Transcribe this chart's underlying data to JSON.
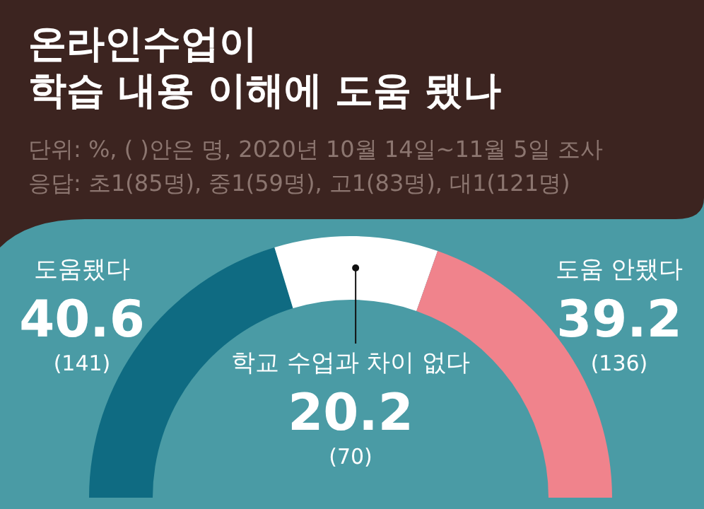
{
  "chart_data": {
    "type": "donut",
    "title": "온라인수업이\n학습 내용 이해에 도움 됐나",
    "subtitle": "단위: %, ( )안은 명, 2020년 10월 14일~11월 5일 조사\n응답: 초1(85명), 중1(59명), 고1(83명), 대1(121명)",
    "categories": [
      "도움됐다",
      "학교 수업과 차이 없다",
      "도움 안됐다"
    ],
    "values": [
      40.6,
      20.2,
      39.2
    ],
    "colors": [
      "#0f6b82",
      "#ffffff",
      "#f0838c"
    ],
    "value_labels": [
      "40.6",
      "20.2",
      "39.2"
    ],
    "annotations": [
      "(141)",
      "(70)",
      "(136)"
    ]
  }
}
